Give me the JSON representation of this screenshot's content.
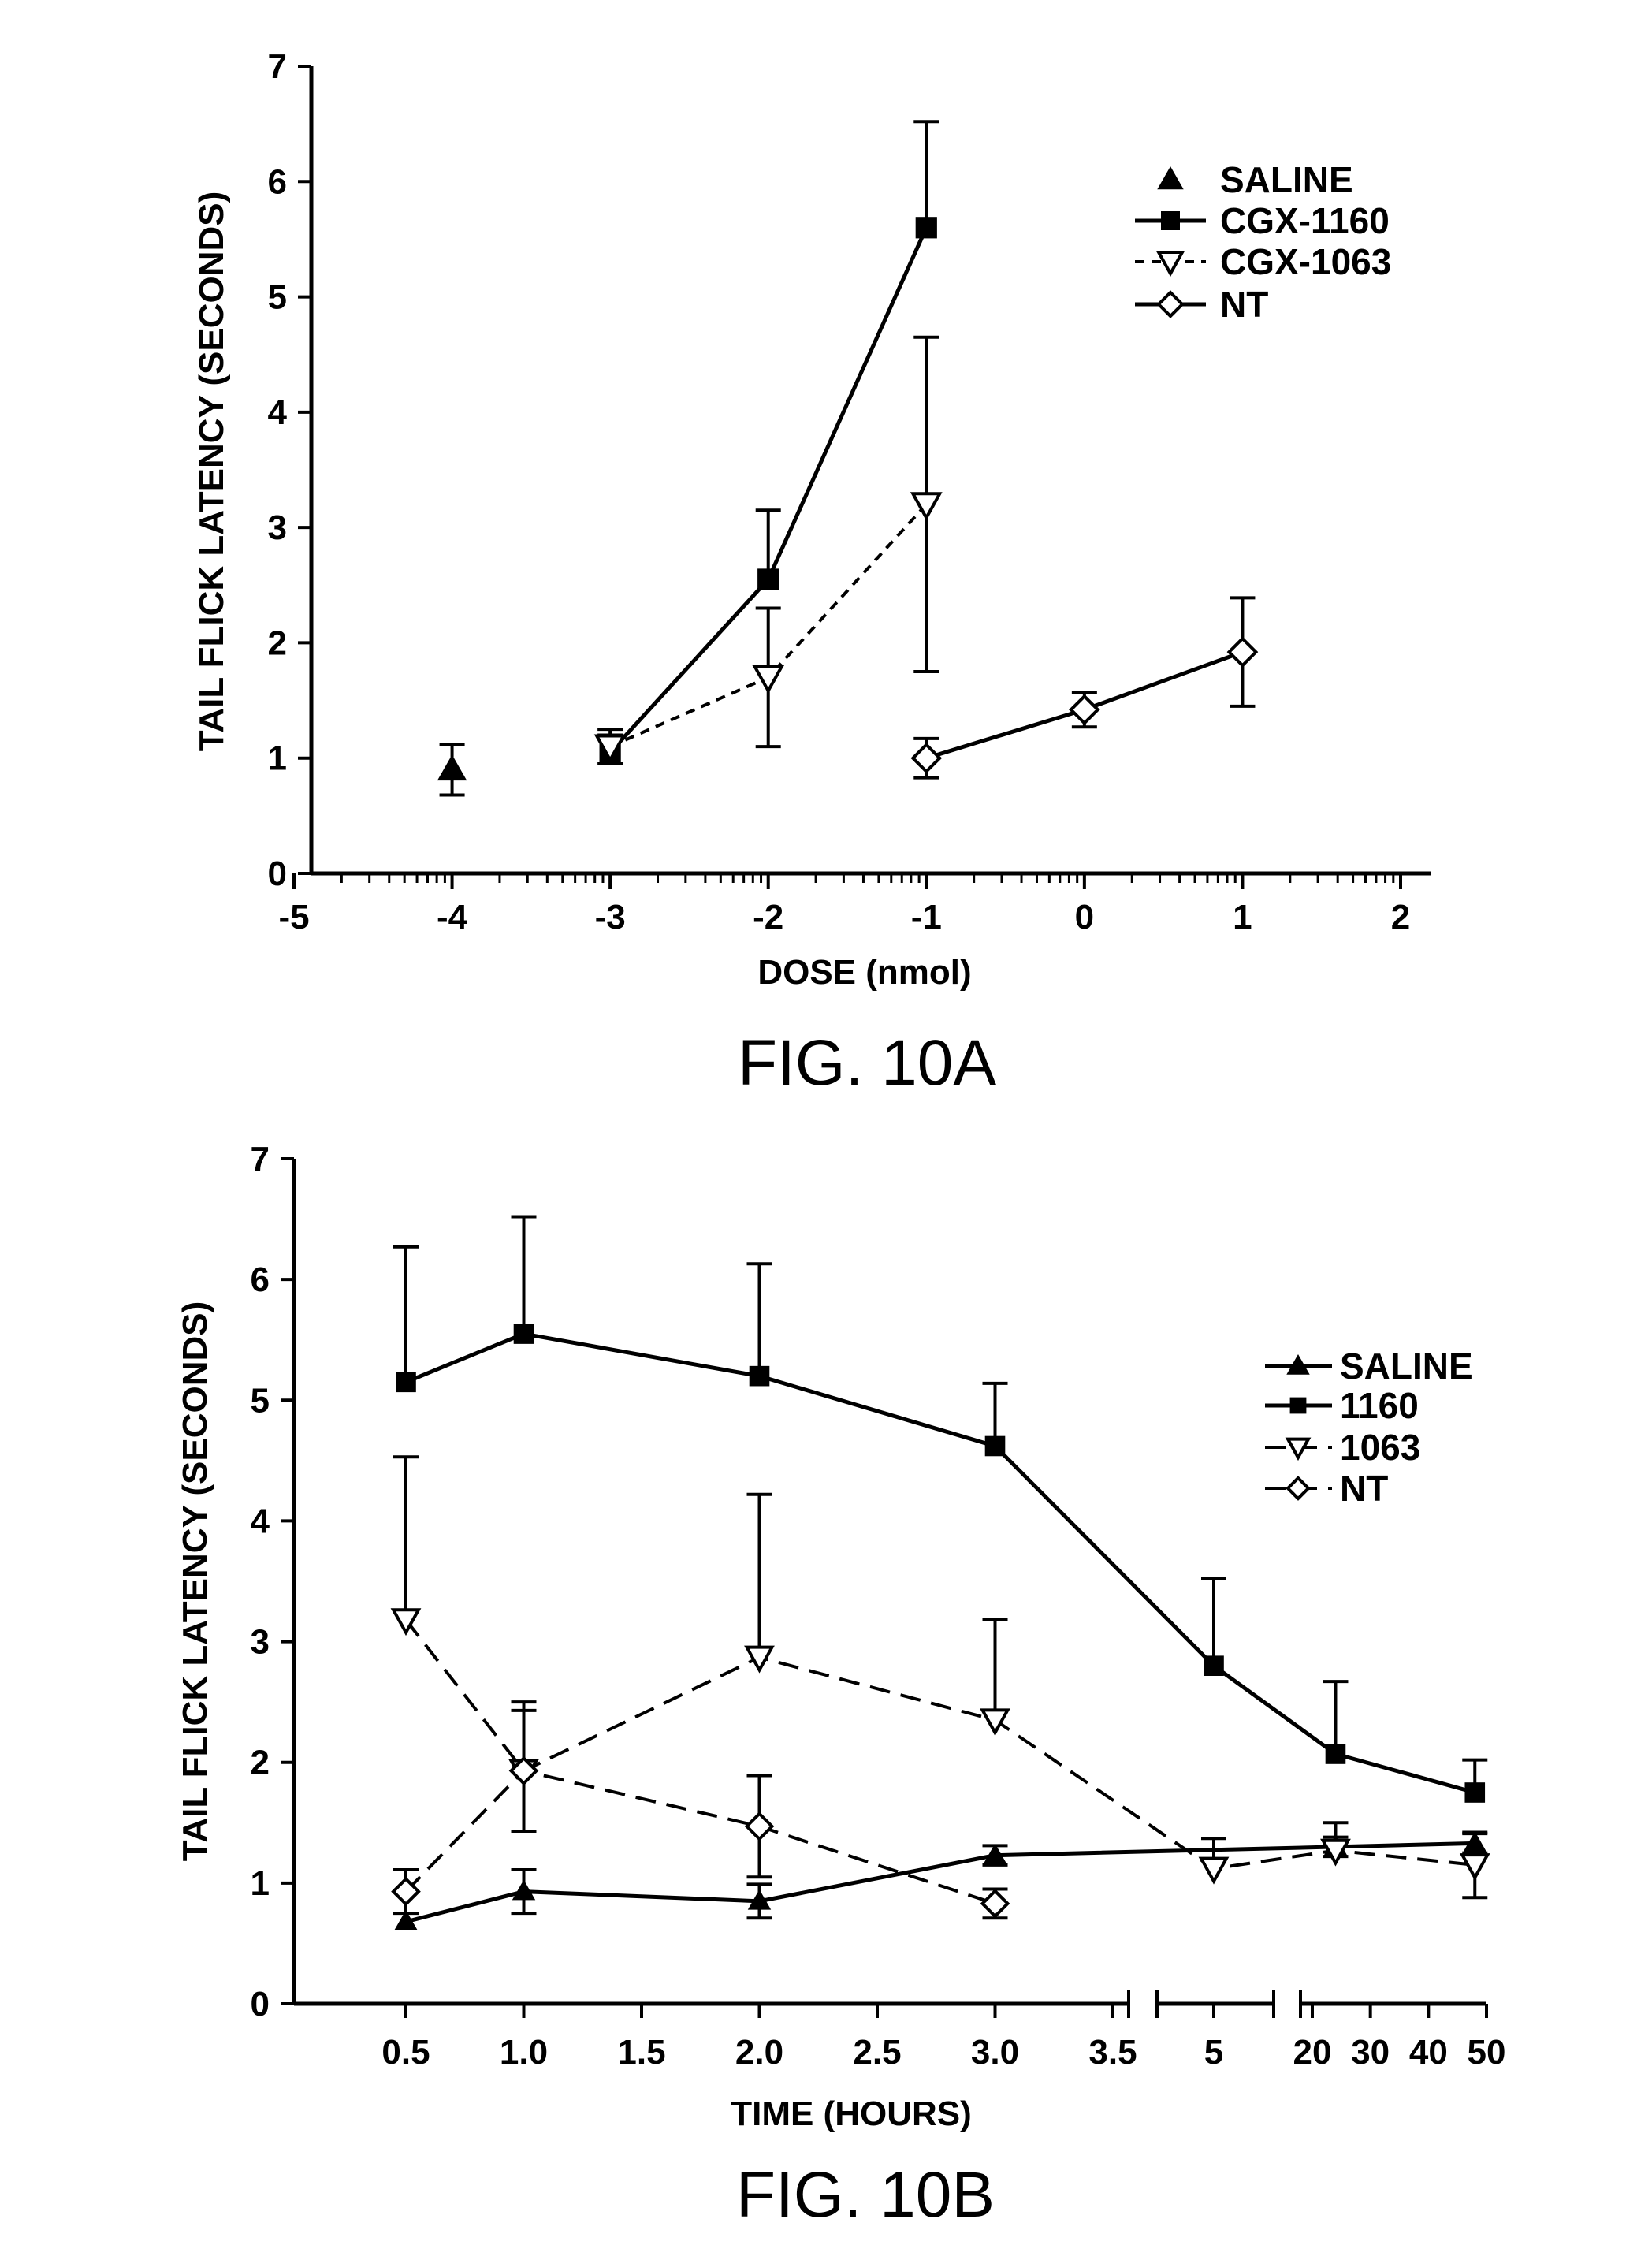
{
  "chart_data": [
    {
      "type": "line",
      "title": "",
      "caption": "FIG. 10A",
      "xlabel": "DOSE (nmol)",
      "ylabel": "TAIL FLICK LATENCY (SECONDS)",
      "xlim": [
        -5,
        2
      ],
      "ylim": [
        0,
        7
      ],
      "x_ticks": [
        "-5",
        "-4",
        "-3",
        "-2",
        "-1",
        "0",
        "1",
        "2"
      ],
      "y_ticks": [
        "0",
        "1",
        "2",
        "3",
        "4",
        "5",
        "6",
        "7"
      ],
      "legend_position": "top-right",
      "series": [
        {
          "name": "SALINE",
          "marker": "triangle-filled",
          "line": "none",
          "points": [
            {
              "x": -4,
              "y": 0.9,
              "err": 0.22
            }
          ]
        },
        {
          "name": "CGX-1160",
          "marker": "square-filled",
          "line": "solid",
          "points": [
            {
              "x": -3,
              "y": 1.05,
              "err": 0.15
            },
            {
              "x": -2,
              "y": 2.55,
              "err": 0.6
            },
            {
              "x": -1,
              "y": 5.6,
              "err": 0.92
            }
          ]
        },
        {
          "name": "CGX-1063",
          "marker": "triangle-down-open",
          "line": "dotted",
          "points": [
            {
              "x": -3,
              "y": 1.1,
              "err": 0.15
            },
            {
              "x": -2,
              "y": 1.7,
              "err": 0.6
            },
            {
              "x": -1,
              "y": 3.2,
              "err": 1.45
            }
          ]
        },
        {
          "name": "NT",
          "marker": "diamond-open",
          "line": "solid",
          "points": [
            {
              "x": -1,
              "y": 1.0,
              "err": 0.17
            },
            {
              "x": 0,
              "y": 1.42,
              "err": 0.15
            },
            {
              "x": 1,
              "y": 1.92,
              "err": 0.47
            }
          ]
        }
      ]
    },
    {
      "type": "line",
      "title": "",
      "caption": "FIG. 10B",
      "xlabel": "TIME (HOURS)",
      "ylabel": "TAIL FLICK LATENCY (SECONDS)",
      "ylim": [
        0,
        7
      ],
      "x_ticks": [
        "0.5",
        "1.0",
        "1.5",
        "2.0",
        "2.5",
        "3.0",
        "3.5",
        "5",
        "20",
        "30",
        "40",
        "50"
      ],
      "y_ticks": [
        "0",
        "1",
        "2",
        "3",
        "4",
        "5",
        "6",
        "7"
      ],
      "x_axis_note": "broken axis: 0.5–3.5 | 5 | 20–50",
      "legend_position": "right",
      "series": [
        {
          "name": "SALINE",
          "marker": "triangle-filled",
          "line": "solid",
          "points": [
            {
              "x": 0.5,
              "y": 0.68,
              "err": 0
            },
            {
              "x": 1.0,
              "y": 0.93,
              "err": 0.18
            },
            {
              "x": 2.0,
              "y": 0.85,
              "err": 0.14
            },
            {
              "x": 3.0,
              "y": 1.23,
              "err": 0.08
            },
            {
              "x": 24,
              "y": 1.3,
              "err": 0.08
            },
            {
              "x": 48,
              "y": 1.33,
              "err": 0.08
            }
          ]
        },
        {
          "name": "1160",
          "marker": "square-filled",
          "line": "solid",
          "points": [
            {
              "x": 0.5,
              "y": 5.15,
              "err": 1.12
            },
            {
              "x": 1.0,
              "y": 5.55,
              "err": 0.97
            },
            {
              "x": 2.0,
              "y": 5.2,
              "err": 0.93
            },
            {
              "x": 3.0,
              "y": 4.62,
              "err": 0.52
            },
            {
              "x": 5,
              "y": 2.8,
              "err": 0.72
            },
            {
              "x": 24,
              "y": 2.07,
              "err": 0.6
            },
            {
              "x": 48,
              "y": 1.75,
              "err": 0.27
            }
          ]
        },
        {
          "name": "1063",
          "marker": "triangle-down-open",
          "line": "dashed",
          "points": [
            {
              "x": 0.5,
              "y": 3.18,
              "err": 1.35
            },
            {
              "x": 1.0,
              "y": 1.93,
              "err": 0.57
            },
            {
              "x": 2.0,
              "y": 2.87,
              "err": 1.35
            },
            {
              "x": 3.0,
              "y": 2.35,
              "err": 0.83
            },
            {
              "x": 5,
              "y": 1.12,
              "err": 0.25
            },
            {
              "x": 24,
              "y": 1.27,
              "err": 0.23
            },
            {
              "x": 48,
              "y": 1.15,
              "err": 0.27
            }
          ]
        },
        {
          "name": "NT",
          "marker": "diamond-open",
          "line": "dashed",
          "points": [
            {
              "x": 0.5,
              "y": 0.93,
              "err": 0.18
            },
            {
              "x": 1.0,
              "y": 1.93,
              "err": 0.5
            },
            {
              "x": 2.0,
              "y": 1.47,
              "err": 0.42
            },
            {
              "x": 3.0,
              "y": 0.83,
              "err": 0.12
            }
          ]
        }
      ]
    }
  ]
}
